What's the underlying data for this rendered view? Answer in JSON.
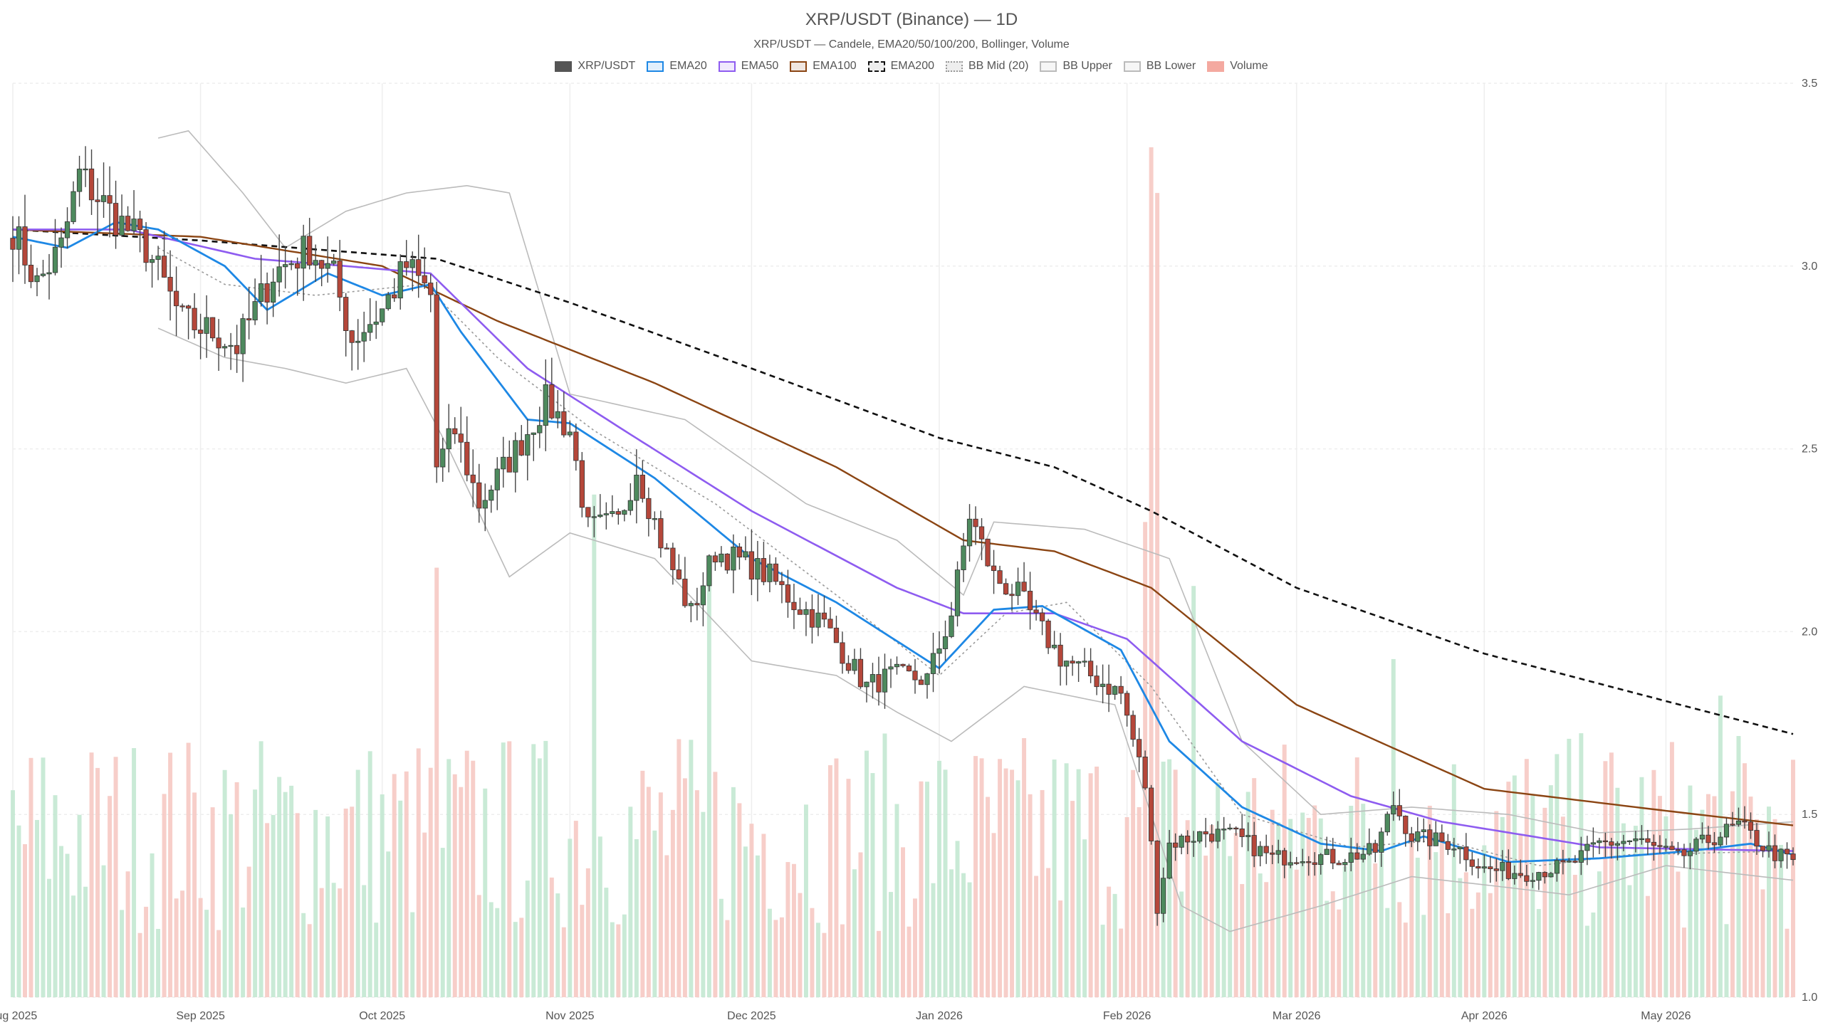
{
  "chart_data": {
    "type": "candlestick",
    "title": "XRP/USDT (Binance) — 1D",
    "subtitle": "XRP/USDT — Candele, EMA20/50/100/200, Bollinger, Volume",
    "ylim": [
      1.0,
      3.5
    ],
    "y_ticks": [
      1.0,
      1.5,
      2.0,
      2.5,
      3.0,
      3.5
    ],
    "y_tick_labels": [
      "1.0",
      "1.5",
      "2.0",
      "2.5",
      "3.0",
      "3.5"
    ],
    "x_start": "2025-08-01",
    "x_end": "2026-05-22",
    "x_ticks": [
      {
        "date": "2025-08-01",
        "label": "Aug 2025"
      },
      {
        "date": "2025-09-01",
        "label": "Sep 2025"
      },
      {
        "date": "2025-10-01",
        "label": "Oct 2025"
      },
      {
        "date": "2025-11-01",
        "label": "Nov 2025"
      },
      {
        "date": "2025-12-01",
        "label": "Dec 2025"
      },
      {
        "date": "2026-01-01",
        "label": "Jan 2026"
      },
      {
        "date": "2026-02-01",
        "label": "Feb 2026"
      },
      {
        "date": "2026-03-01",
        "label": "Mar 2026"
      },
      {
        "date": "2026-04-01",
        "label": "Apr 2026"
      },
      {
        "date": "2026-05-01",
        "label": "May 2026"
      }
    ],
    "grid": true,
    "legend_position": "top-center",
    "legend": [
      {
        "name": "XRP/USDT",
        "color": "#555555",
        "style": "fill"
      },
      {
        "name": "EMA20",
        "color": "#1e88e5",
        "style": "line"
      },
      {
        "name": "EMA50",
        "color": "#8e5cf0",
        "style": "line"
      },
      {
        "name": "EMA100",
        "color": "#8b4513",
        "style": "line"
      },
      {
        "name": "EMA200",
        "color": "#111111",
        "style": "dashed"
      },
      {
        "name": "BB Mid (20)",
        "color": "#999999",
        "style": "dotted"
      },
      {
        "name": "BB Upper",
        "color": "#bbbbbb",
        "style": "line"
      },
      {
        "name": "BB Lower",
        "color": "#bbbbbb",
        "style": "line"
      },
      {
        "name": "Volume",
        "color": "#f4a9a0",
        "style": "fill"
      }
    ],
    "colors": {
      "up": "#4e8a5e",
      "down": "#b5473a",
      "vol_up": "#bfe6cf",
      "vol_down": "#f6c5bf"
    },
    "close_anchors": [
      [
        "2025-08-01",
        3.1
      ],
      [
        "2025-08-05",
        2.95
      ],
      [
        "2025-08-09",
        3.05
      ],
      [
        "2025-08-12",
        3.25
      ],
      [
        "2025-08-17",
        3.15
      ],
      [
        "2025-08-20",
        3.1
      ],
      [
        "2025-08-23",
        3.05
      ],
      [
        "2025-08-29",
        2.85
      ],
      [
        "2025-09-03",
        2.82
      ],
      [
        "2025-09-07",
        2.78
      ],
      [
        "2025-09-13",
        2.98
      ],
      [
        "2025-09-19",
        3.05
      ],
      [
        "2025-09-23",
        2.97
      ],
      [
        "2025-09-26",
        2.8
      ],
      [
        "2025-10-01",
        2.88
      ],
      [
        "2025-10-05",
        3.0
      ],
      [
        "2025-10-09",
        2.92
      ],
      [
        "2025-10-10",
        2.45
      ],
      [
        "2025-10-13",
        2.55
      ],
      [
        "2025-10-17",
        2.35
      ],
      [
        "2025-10-20",
        2.42
      ],
      [
        "2025-10-24",
        2.52
      ],
      [
        "2025-10-28",
        2.63
      ],
      [
        "2025-11-01",
        2.55
      ],
      [
        "2025-11-04",
        2.28
      ],
      [
        "2025-11-09",
        2.3
      ],
      [
        "2025-11-12",
        2.45
      ],
      [
        "2025-11-16",
        2.25
      ],
      [
        "2025-11-21",
        2.05
      ],
      [
        "2025-11-25",
        2.22
      ],
      [
        "2025-12-01",
        2.18
      ],
      [
        "2025-12-04",
        2.15
      ],
      [
        "2025-12-08",
        2.08
      ],
      [
        "2025-12-13",
        2.02
      ],
      [
        "2025-12-17",
        1.92
      ],
      [
        "2025-12-20",
        1.85
      ],
      [
        "2025-12-24",
        1.88
      ],
      [
        "2025-12-30",
        1.87
      ],
      [
        "2026-01-03",
        2.05
      ],
      [
        "2026-01-06",
        2.32
      ],
      [
        "2026-01-10",
        2.15
      ],
      [
        "2026-01-14",
        2.1
      ],
      [
        "2026-01-18",
        2.0
      ],
      [
        "2026-01-21",
        1.93
      ],
      [
        "2026-01-26",
        1.88
      ],
      [
        "2026-01-31",
        1.83
      ],
      [
        "2026-02-04",
        1.58
      ],
      [
        "2026-02-06",
        1.25
      ],
      [
        "2026-02-08",
        1.42
      ],
      [
        "2026-02-14",
        1.45
      ],
      [
        "2026-02-19",
        1.44
      ],
      [
        "2026-02-25",
        1.38
      ],
      [
        "2026-03-02",
        1.39
      ],
      [
        "2026-03-08",
        1.38
      ],
      [
        "2026-03-14",
        1.4
      ],
      [
        "2026-03-17",
        1.53
      ],
      [
        "2026-03-20",
        1.44
      ],
      [
        "2026-03-27",
        1.42
      ],
      [
        "2026-04-01",
        1.35
      ],
      [
        "2026-04-08",
        1.34
      ],
      [
        "2026-04-15",
        1.36
      ],
      [
        "2026-04-20",
        1.42
      ],
      [
        "2026-04-26",
        1.43
      ],
      [
        "2026-05-03",
        1.38
      ],
      [
        "2026-05-08",
        1.43
      ],
      [
        "2026-05-13",
        1.47
      ],
      [
        "2026-05-18",
        1.4
      ],
      [
        "2026-05-22",
        1.37
      ]
    ],
    "ema20": [
      [
        "2025-08-01",
        3.08
      ],
      [
        "2025-08-10",
        3.05
      ],
      [
        "2025-08-18",
        3.12
      ],
      [
        "2025-08-25",
        3.1
      ],
      [
        "2025-09-05",
        3.0
      ],
      [
        "2025-09-12",
        2.88
      ],
      [
        "2025-09-22",
        2.98
      ],
      [
        "2025-10-01",
        2.92
      ],
      [
        "2025-10-09",
        2.95
      ],
      [
        "2025-10-14",
        2.82
      ],
      [
        "2025-10-25",
        2.58
      ],
      [
        "2025-11-01",
        2.57
      ],
      [
        "2025-11-15",
        2.42
      ],
      [
        "2025-12-01",
        2.2
      ],
      [
        "2025-12-15",
        2.08
      ],
      [
        "2026-01-01",
        1.9
      ],
      [
        "2026-01-10",
        2.06
      ],
      [
        "2026-01-18",
        2.07
      ],
      [
        "2026-01-31",
        1.95
      ],
      [
        "2026-02-08",
        1.7
      ],
      [
        "2026-02-20",
        1.52
      ],
      [
        "2026-03-05",
        1.42
      ],
      [
        "2026-03-15",
        1.4
      ],
      [
        "2026-03-22",
        1.44
      ],
      [
        "2026-04-05",
        1.37
      ],
      [
        "2026-04-20",
        1.38
      ],
      [
        "2026-05-05",
        1.4
      ],
      [
        "2026-05-15",
        1.42
      ],
      [
        "2026-05-22",
        1.39
      ]
    ],
    "ema50": [
      [
        "2025-08-01",
        3.1
      ],
      [
        "2025-08-20",
        3.1
      ],
      [
        "2025-09-10",
        3.02
      ],
      [
        "2025-09-25",
        3.0
      ],
      [
        "2025-10-09",
        2.98
      ],
      [
        "2025-10-25",
        2.72
      ],
      [
        "2025-11-10",
        2.55
      ],
      [
        "2025-12-01",
        2.33
      ],
      [
        "2025-12-25",
        2.12
      ],
      [
        "2026-01-05",
        2.05
      ],
      [
        "2026-01-20",
        2.05
      ],
      [
        "2026-02-01",
        1.98
      ],
      [
        "2026-02-20",
        1.7
      ],
      [
        "2026-03-10",
        1.55
      ],
      [
        "2026-03-25",
        1.48
      ],
      [
        "2026-04-20",
        1.41
      ],
      [
        "2026-05-22",
        1.4
      ]
    ],
    "ema100": [
      [
        "2025-08-01",
        3.1
      ],
      [
        "2025-09-01",
        3.08
      ],
      [
        "2025-10-01",
        3.0
      ],
      [
        "2025-10-20",
        2.85
      ],
      [
        "2025-11-15",
        2.68
      ],
      [
        "2025-12-15",
        2.45
      ],
      [
        "2026-01-05",
        2.25
      ],
      [
        "2026-01-20",
        2.22
      ],
      [
        "2026-02-05",
        2.12
      ],
      [
        "2026-03-01",
        1.8
      ],
      [
        "2026-04-01",
        1.57
      ],
      [
        "2026-05-01",
        1.51
      ],
      [
        "2026-05-22",
        1.47
      ]
    ],
    "ema200": [
      [
        "2025-08-01",
        3.1
      ],
      [
        "2025-09-01",
        3.07
      ],
      [
        "2025-10-10",
        3.02
      ],
      [
        "2025-11-01",
        2.9
      ],
      [
        "2025-12-01",
        2.72
      ],
      [
        "2026-01-01",
        2.53
      ],
      [
        "2026-01-20",
        2.45
      ],
      [
        "2026-02-05",
        2.33
      ],
      [
        "2026-03-01",
        2.12
      ],
      [
        "2026-04-01",
        1.94
      ],
      [
        "2026-05-01",
        1.81
      ],
      [
        "2026-05-22",
        1.72
      ]
    ],
    "bb_mid": [
      [
        "2025-08-25",
        3.05
      ],
      [
        "2025-09-05",
        2.95
      ],
      [
        "2025-09-20",
        2.92
      ],
      [
        "2025-10-08",
        2.95
      ],
      [
        "2025-10-20",
        2.75
      ],
      [
        "2025-11-05",
        2.55
      ],
      [
        "2025-11-25",
        2.35
      ],
      [
        "2025-12-15",
        2.1
      ],
      [
        "2026-01-01",
        1.88
      ],
      [
        "2026-01-12",
        2.05
      ],
      [
        "2026-01-22",
        2.08
      ],
      [
        "2026-02-05",
        1.85
      ],
      [
        "2026-02-20",
        1.5
      ],
      [
        "2026-03-10",
        1.41
      ],
      [
        "2026-03-25",
        1.43
      ],
      [
        "2026-04-10",
        1.36
      ],
      [
        "2026-04-25",
        1.39
      ],
      [
        "2026-05-22",
        1.4
      ]
    ],
    "bb_upper": [
      [
        "2025-08-25",
        3.35
      ],
      [
        "2025-08-30",
        3.37
      ],
      [
        "2025-09-08",
        3.2
      ],
      [
        "2025-09-15",
        3.05
      ],
      [
        "2025-09-25",
        3.15
      ],
      [
        "2025-10-05",
        3.2
      ],
      [
        "2025-10-15",
        3.22
      ],
      [
        "2025-10-22",
        3.2
      ],
      [
        "2025-11-01",
        2.65
      ],
      [
        "2025-11-20",
        2.58
      ],
      [
        "2025-12-10",
        2.35
      ],
      [
        "2025-12-25",
        2.25
      ],
      [
        "2026-01-05",
        2.1
      ],
      [
        "2026-01-10",
        2.3
      ],
      [
        "2026-01-25",
        2.28
      ],
      [
        "2026-02-08",
        2.2
      ],
      [
        "2026-02-20",
        1.7
      ],
      [
        "2026-03-05",
        1.5
      ],
      [
        "2026-03-20",
        1.52
      ],
      [
        "2026-04-05",
        1.5
      ],
      [
        "2026-04-20",
        1.45
      ],
      [
        "2026-05-05",
        1.46
      ],
      [
        "2026-05-22",
        1.48
      ]
    ],
    "bb_lower": [
      [
        "2025-08-25",
        2.83
      ],
      [
        "2025-09-05",
        2.75
      ],
      [
        "2025-09-15",
        2.72
      ],
      [
        "2025-09-25",
        2.68
      ],
      [
        "2025-10-05",
        2.72
      ],
      [
        "2025-10-12",
        2.5
      ],
      [
        "2025-10-22",
        2.15
      ],
      [
        "2025-11-01",
        2.27
      ],
      [
        "2025-11-15",
        2.2
      ],
      [
        "2025-12-01",
        1.92
      ],
      [
        "2025-12-15",
        1.88
      ],
      [
        "2025-12-25",
        1.78
      ],
      [
        "2026-01-03",
        1.7
      ],
      [
        "2026-01-15",
        1.85
      ],
      [
        "2026-01-30",
        1.8
      ],
      [
        "2026-02-10",
        1.25
      ],
      [
        "2026-02-18",
        1.18
      ],
      [
        "2026-03-05",
        1.25
      ],
      [
        "2026-03-20",
        1.33
      ],
      [
        "2026-04-05",
        1.3
      ],
      [
        "2026-04-15",
        1.28
      ],
      [
        "2026-05-01",
        1.36
      ],
      [
        "2026-05-22",
        1.32
      ]
    ],
    "volume_spikes": [
      [
        "2025-10-10",
        0.47
      ],
      [
        "2025-11-05",
        0.55
      ],
      [
        "2025-11-24",
        0.46
      ],
      [
        "2026-02-04",
        0.52
      ],
      [
        "2026-02-05",
        0.93
      ],
      [
        "2026-02-06",
        0.88
      ],
      [
        "2026-02-12",
        0.45
      ],
      [
        "2026-03-17",
        0.37
      ],
      [
        "2026-05-10",
        0.33
      ]
    ]
  }
}
